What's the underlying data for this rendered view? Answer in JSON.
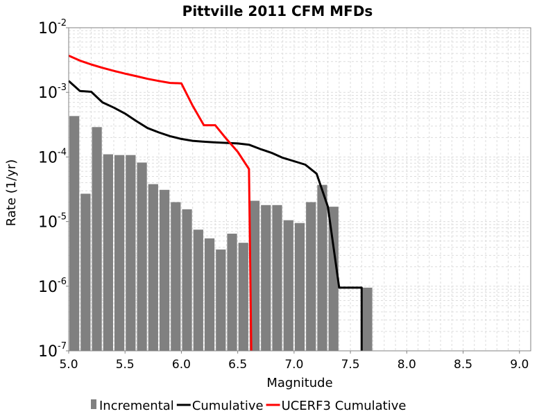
{
  "chart_data": {
    "type": "bar",
    "title": "Pittville 2011 CFM MFDs",
    "xlabel": "Magnitude",
    "ylabel": "Rate (1/yr)",
    "xlim": [
      5.0,
      9.1
    ],
    "ylim": [
      1e-07,
      0.01
    ],
    "y_scale": "log",
    "grid": true,
    "legend_position": "bottom",
    "x_ticks": [
      "5.0",
      "5.5",
      "6.0",
      "6.5",
      "7.0",
      "7.5",
      "8.0",
      "8.5",
      "9.0"
    ],
    "x_tick_values": [
      5.0,
      5.5,
      6.0,
      6.5,
      7.0,
      7.5,
      8.0,
      8.5,
      9.0
    ],
    "y_ticks": [
      {
        "base": "10",
        "exp": "-7",
        "value": 1e-07
      },
      {
        "base": "10",
        "exp": "-6",
        "value": 1e-06
      },
      {
        "base": "10",
        "exp": "-5",
        "value": 1e-05
      },
      {
        "base": "10",
        "exp": "-4",
        "value": 0.0001
      },
      {
        "base": "10",
        "exp": "-3",
        "value": 0.001
      },
      {
        "base": "10",
        "exp": "-2",
        "value": 0.01
      }
    ],
    "bar_width": 0.1,
    "series": [
      {
        "name": "Incremental",
        "kind": "bar",
        "color": "#808080",
        "x": [
          5.05,
          5.15,
          5.25,
          5.35,
          5.45,
          5.55,
          5.65,
          5.75,
          5.85,
          5.95,
          6.05,
          6.15,
          6.25,
          6.35,
          6.45,
          6.55,
          6.65,
          6.75,
          6.85,
          6.95,
          7.05,
          7.15,
          7.25,
          7.35,
          7.65
        ],
        "values": [
          0.00043,
          2.7e-05,
          0.00029,
          0.00011,
          0.000107,
          0.000107,
          8.2e-05,
          3.8e-05,
          3.1e-05,
          2e-05,
          1.55e-05,
          7.5e-06,
          5.5e-06,
          3.7e-06,
          6.5e-06,
          4.7e-06,
          2.1e-05,
          1.8e-05,
          1.8e-05,
          1.05e-05,
          9.5e-06,
          2e-05,
          3.7e-05,
          1.7e-05,
          9.5e-07
        ]
      },
      {
        "name": "Cumulative",
        "kind": "line",
        "color": "#000000",
        "x": [
          5.0,
          5.1,
          5.2,
          5.3,
          5.4,
          5.5,
          5.6,
          5.7,
          5.8,
          5.9,
          6.0,
          6.1,
          6.2,
          6.3,
          6.4,
          6.5,
          6.6,
          6.7,
          6.8,
          6.9,
          7.0,
          7.1,
          7.2,
          7.3,
          7.4,
          7.5,
          7.6,
          7.6
        ],
        "values": [
          0.0015,
          0.00105,
          0.00102,
          0.0007,
          0.00058,
          0.00047,
          0.00036,
          0.00028,
          0.00024,
          0.00021,
          0.00019,
          0.000178,
          0.000172,
          0.000168,
          0.000165,
          0.000162,
          0.000155,
          0.000133,
          0.000116,
          9.7e-05,
          8.6e-05,
          7.6e-05,
          5.5e-05,
          1.7e-05,
          9.5e-07,
          9.5e-07,
          9.5e-07,
          1e-07
        ]
      },
      {
        "name": "UCERF3 Cumulative",
        "kind": "line",
        "color": "#ff0000",
        "x": [
          5.0,
          5.1,
          5.2,
          5.3,
          5.4,
          5.5,
          5.6,
          5.7,
          5.8,
          5.9,
          6.0,
          6.1,
          6.2,
          6.3,
          6.4,
          6.5,
          6.6,
          6.62
        ],
        "values": [
          0.0037,
          0.0031,
          0.0027,
          0.0024,
          0.00215,
          0.00195,
          0.00178,
          0.00162,
          0.0015,
          0.0014,
          0.00138,
          0.00062,
          0.00031,
          0.00031,
          0.00019,
          0.00012,
          6.5e-05,
          1e-07
        ]
      }
    ]
  }
}
